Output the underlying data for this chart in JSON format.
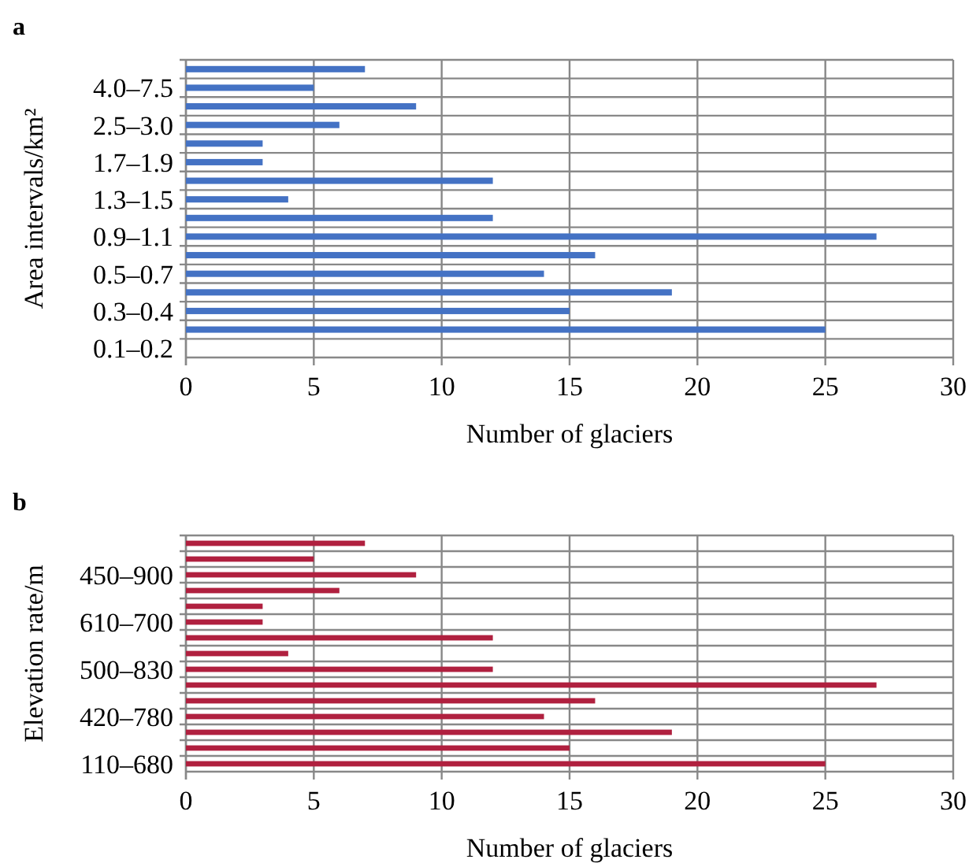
{
  "chart_data": [
    {
      "type": "bar",
      "orientation": "horizontal",
      "title": "a",
      "xlabel": "Number of glaciers",
      "ylabel": "Area intervals/km²",
      "categories": [
        null,
        "4.0–7.5",
        null,
        "2.5–3.0",
        null,
        "1.7–1.9",
        null,
        "1.3–1.5",
        null,
        "0.9–1.1",
        null,
        "0.5–0.7",
        null,
        "0.3–0.4",
        null,
        "0.1–0.2"
      ],
      "values": [
        7,
        5,
        9,
        6,
        3,
        3,
        12,
        4,
        12,
        27,
        16,
        14,
        19,
        15,
        25,
        null
      ],
      "color": "#4472c4",
      "xlim": [
        0,
        30
      ],
      "xticks": [
        0,
        5,
        10,
        15,
        20,
        25,
        30
      ],
      "grid": true
    },
    {
      "type": "bar",
      "orientation": "horizontal",
      "title": "b",
      "xlabel": "Number of glaciers",
      "ylabel": "Elevation rate/m",
      "categories": [
        null,
        null,
        "450–900",
        null,
        null,
        "610–700",
        null,
        null,
        "500–830",
        null,
        null,
        "420–780",
        null,
        null,
        "110–680"
      ],
      "values": [
        7,
        5,
        9,
        6,
        3,
        3,
        12,
        4,
        12,
        27,
        16,
        14,
        19,
        15,
        25
      ],
      "color": "#b0203f",
      "xlim": [
        0,
        30
      ],
      "xticks": [
        0,
        5,
        10,
        15,
        20,
        25,
        30
      ],
      "grid": true
    }
  ]
}
